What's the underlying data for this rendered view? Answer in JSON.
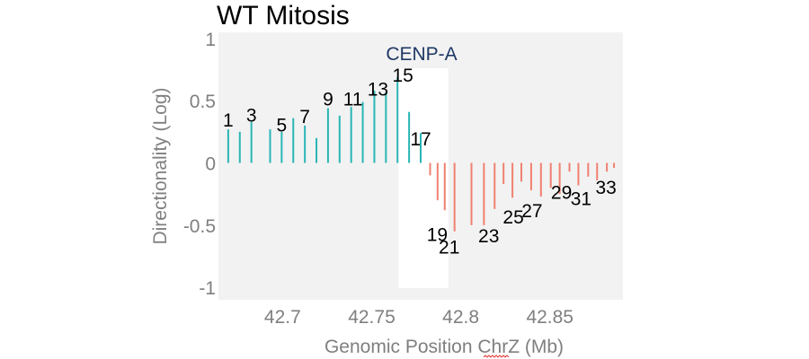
{
  "chart_data": {
    "type": "bar",
    "title": "WT Mitosis",
    "xlabel": "Genomic Position ChrZ (Mb)",
    "ylabel": "Directionality (Log)",
    "xlim": [
      42.664,
      42.891
    ],
    "ylim": [
      -1.1,
      1.05
    ],
    "x_ticks": [
      42.7,
      42.75,
      42.8,
      42.85
    ],
    "x_tick_labels": [
      "42.7",
      "42.75",
      "42.8",
      "42.85"
    ],
    "y_ticks": [
      1,
      0.5,
      0,
      -0.5,
      -1
    ],
    "y_tick_labels": [
      "1",
      "0.5",
      "0",
      "-0.5",
      "-1"
    ],
    "grid": false,
    "panel_background": "#f2f2f2",
    "highlight_region": {
      "label": "CENP-A",
      "x_start": 42.765,
      "x_end": 42.793,
      "color": "#ffffff",
      "label_color": "#1f3864"
    },
    "colors": {
      "positive": "#2ab5b5",
      "negative": "#f08070"
    },
    "x": [
      42.6695,
      42.676,
      42.6825,
      42.693,
      42.6995,
      42.706,
      42.7125,
      42.719,
      42.7255,
      42.732,
      42.7385,
      42.745,
      42.7515,
      42.758,
      42.7645,
      42.771,
      42.7775,
      42.7828,
      42.787,
      42.791,
      42.7965,
      42.806,
      42.813,
      42.819,
      42.824,
      42.829,
      42.834,
      42.8395,
      42.845,
      42.8505,
      42.8555,
      42.861,
      42.866,
      42.8715,
      42.8765,
      42.882,
      42.886
    ],
    "values": [
      0.27,
      0.25,
      0.33,
      0.27,
      0.25,
      0.36,
      0.3,
      0.2,
      0.44,
      0.38,
      0.45,
      0.49,
      0.58,
      0.57,
      0.69,
      0.41,
      0.24,
      -0.1,
      -0.3,
      -0.38,
      -0.55,
      -0.5,
      -0.5,
      -0.37,
      -0.17,
      -0.28,
      -0.15,
      -0.22,
      -0.27,
      -0.2,
      -0.25,
      -0.07,
      -0.18,
      -0.11,
      -0.14,
      -0.07,
      -0.04
    ],
    "bin_labels": [
      {
        "text": "1",
        "x": 42.6695,
        "y": 0.35
      },
      {
        "text": "3",
        "x": 42.6825,
        "y": 0.39
      },
      {
        "text": "5",
        "x": 42.6995,
        "y": 0.31
      },
      {
        "text": "7",
        "x": 42.7125,
        "y": 0.38
      },
      {
        "text": "9",
        "x": 42.7255,
        "y": 0.52
      },
      {
        "text": "11",
        "x": 42.7395,
        "y": 0.52
      },
      {
        "text": "13",
        "x": 42.7535,
        "y": 0.6
      },
      {
        "text": "15",
        "x": 42.7675,
        "y": 0.71
      },
      {
        "text": "17",
        "x": 42.7775,
        "y": 0.2
      },
      {
        "text": "19",
        "x": 42.7868,
        "y": -0.57
      },
      {
        "text": "21",
        "x": 42.7935,
        "y": -0.67
      },
      {
        "text": "23",
        "x": 42.8157,
        "y": -0.58
      },
      {
        "text": "25",
        "x": 42.8295,
        "y": -0.43
      },
      {
        "text": "27",
        "x": 42.84,
        "y": -0.38
      },
      {
        "text": "29",
        "x": 42.8565,
        "y": -0.23
      },
      {
        "text": "31",
        "x": 42.8675,
        "y": -0.28
      },
      {
        "text": "33",
        "x": 42.8815,
        "y": -0.19
      }
    ]
  }
}
